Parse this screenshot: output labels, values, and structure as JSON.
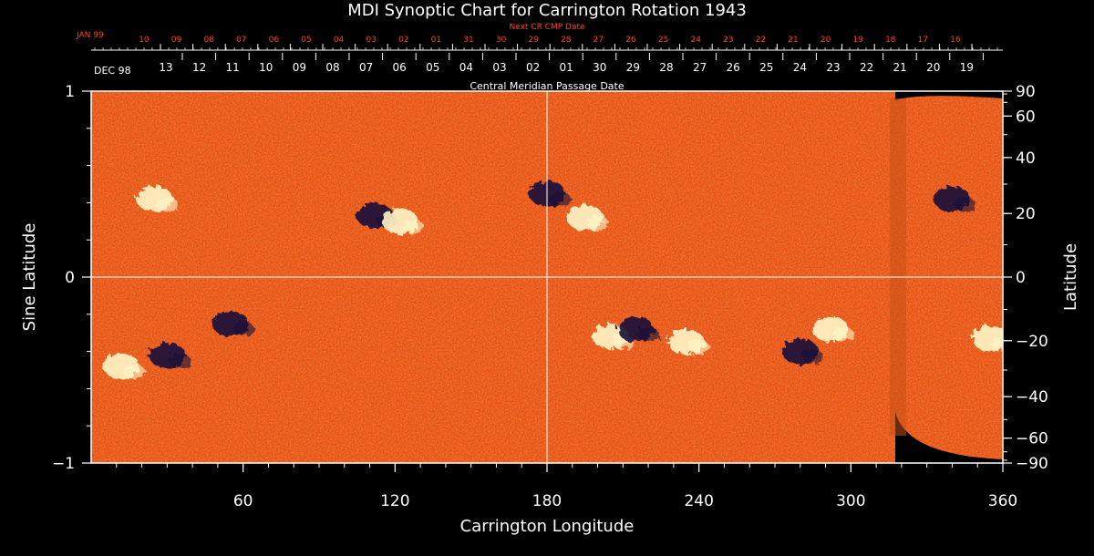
{
  "chart_data": {
    "type": "heatmap",
    "title": "MDI Synoptic Chart for Carrington Rotation 1943",
    "next_cr_title": "Next CR CMP Date",
    "cmp_title": "Central Meridian Passage Date",
    "xlabel": "Carrington Longitude",
    "ylabel_left": "Sine Latitude",
    "ylabel_right": "Latitude",
    "xlim": [
      0,
      360
    ],
    "ylim": [
      -1,
      1
    ],
    "x_ticks": [
      60,
      120,
      180,
      240,
      300,
      360
    ],
    "y_ticks_left": [
      {
        "value": 1,
        "label": "1"
      },
      {
        "value": 0,
        "label": "0"
      },
      {
        "value": -1,
        "label": "−1"
      }
    ],
    "y_ticks_right": [
      {
        "deg": 90,
        "label": "90"
      },
      {
        "deg": 60,
        "label": "60"
      },
      {
        "deg": 40,
        "label": "40"
      },
      {
        "deg": 20,
        "label": "20"
      },
      {
        "deg": 0,
        "label": "0"
      },
      {
        "deg": -20,
        "label": "−20"
      },
      {
        "deg": -40,
        "label": "−40"
      },
      {
        "deg": -60,
        "label": "−60"
      },
      {
        "deg": -90,
        "label": "−90"
      }
    ],
    "red_month_label": "JAN 99",
    "red_dates": [
      "10",
      "09",
      "08",
      "07",
      "06",
      "05",
      "04",
      "03",
      "02",
      "01",
      "31",
      "30",
      "29",
      "28",
      "27",
      "26",
      "25",
      "24",
      "23",
      "22",
      "21",
      "20",
      "19",
      "18",
      "17",
      "16"
    ],
    "white_month_label": "DEC 98",
    "white_dates": [
      "13",
      "12",
      "11",
      "10",
      "09",
      "08",
      "07",
      "06",
      "05",
      "04",
      "03",
      "02",
      "01",
      "30",
      "29",
      "28",
      "27",
      "26",
      "25",
      "24",
      "23",
      "22",
      "21",
      "20",
      "19"
    ],
    "grid_lines": {
      "longitude": 180,
      "sine_latitude": 0
    },
    "colors": {
      "background": "#000000",
      "field": "#e8460e",
      "positive": "#fff6c8",
      "negative": "#14123a",
      "red_text": "#ff4020"
    },
    "features": [
      {
        "polarity": "positive",
        "lon": 25,
        "sinlat": 0.42
      },
      {
        "polarity": "negative",
        "lon": 112,
        "sinlat": 0.33
      },
      {
        "polarity": "positive",
        "lon": 122,
        "sinlat": 0.3
      },
      {
        "polarity": "negative",
        "lon": 180,
        "sinlat": 0.45
      },
      {
        "polarity": "positive",
        "lon": 195,
        "sinlat": 0.32
      },
      {
        "polarity": "negative",
        "lon": 340,
        "sinlat": 0.42
      },
      {
        "polarity": "positive",
        "lon": 12,
        "sinlat": -0.48
      },
      {
        "polarity": "negative",
        "lon": 30,
        "sinlat": -0.42
      },
      {
        "polarity": "negative",
        "lon": 55,
        "sinlat": -0.25
      },
      {
        "polarity": "positive",
        "lon": 205,
        "sinlat": -0.32
      },
      {
        "polarity": "negative",
        "lon": 215,
        "sinlat": -0.28
      },
      {
        "polarity": "positive",
        "lon": 235,
        "sinlat": -0.35
      },
      {
        "polarity": "negative",
        "lon": 280,
        "sinlat": -0.4
      },
      {
        "polarity": "positive",
        "lon": 292,
        "sinlat": -0.28
      },
      {
        "polarity": "positive",
        "lon": 355,
        "sinlat": -0.33
      }
    ]
  }
}
